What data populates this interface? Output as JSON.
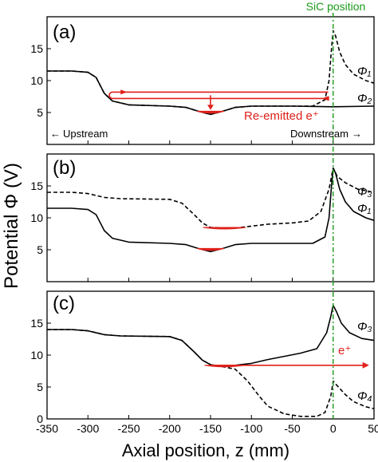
{
  "chart_data": {
    "type": "line",
    "xlabel": "Axial position, z (mm)",
    "ylabel": "Potential Φ (V)",
    "xlim": [
      -350,
      50
    ],
    "xticks": [
      "-350",
      "-300",
      "-250",
      "-200",
      "-150",
      "-100",
      "-50",
      "0",
      "50"
    ],
    "sic_label": "SiC position",
    "sic_z": 0,
    "panels": [
      {
        "label": "(a)",
        "ylim": [
          0,
          20
        ],
        "yticks": [
          "5",
          "10",
          "15"
        ],
        "upstream_label": "Upstream",
        "downstream_label": "Downstream",
        "annotation": "Re-emitted e⁺",
        "series": [
          {
            "name": "Φ₁",
            "style": "dashed",
            "points": [
              [
                -350,
                11.5
              ],
              [
                -320,
                11.5
              ],
              [
                -300,
                11.3
              ],
              [
                -290,
                10.5
              ],
              [
                -280,
                8.0
              ],
              [
                -270,
                6.8
              ],
              [
                -250,
                6.2
              ],
              [
                -200,
                6.0
              ],
              [
                -180,
                5.8
              ],
              [
                -165,
                5.2
              ],
              [
                -150,
                4.7
              ],
              [
                -135,
                5.2
              ],
              [
                -120,
                5.8
              ],
              [
                -100,
                6.0
              ],
              [
                -50,
                6.0
              ],
              [
                -25,
                6.0
              ],
              [
                -10,
                7.0
              ],
              [
                -5,
                10.0
              ],
              [
                -2,
                15.0
              ],
              [
                0,
                17.8
              ],
              [
                3,
                17.0
              ],
              [
                8,
                14.5
              ],
              [
                15,
                12.5
              ],
              [
                25,
                11.0
              ],
              [
                40,
                10.0
              ],
              [
                50,
                9.6
              ]
            ]
          },
          {
            "name": "Φ₂",
            "style": "solid",
            "points": [
              [
                -350,
                11.5
              ],
              [
                -320,
                11.5
              ],
              [
                -300,
                11.3
              ],
              [
                -290,
                10.5
              ],
              [
                -280,
                8.0
              ],
              [
                -270,
                6.8
              ],
              [
                -250,
                6.2
              ],
              [
                -200,
                6.0
              ],
              [
                -180,
                5.8
              ],
              [
                -165,
                5.2
              ],
              [
                -150,
                4.7
              ],
              [
                -135,
                5.2
              ],
              [
                -120,
                5.8
              ],
              [
                -100,
                6.0
              ],
              [
                -50,
                6.0
              ],
              [
                0,
                5.9
              ],
              [
                50,
                6.0
              ]
            ]
          }
        ]
      },
      {
        "label": "(b)",
        "ylim": [
          0,
          20
        ],
        "yticks": [
          "5",
          "10",
          "15"
        ],
        "series": [
          {
            "name": "Φ₃",
            "style": "dashed",
            "points": [
              [
                -350,
                14.0
              ],
              [
                -320,
                14.0
              ],
              [
                -300,
                13.8
              ],
              [
                -280,
                13.2
              ],
              [
                -260,
                13.0
              ],
              [
                -200,
                12.9
              ],
              [
                -185,
                12.3
              ],
              [
                -170,
                10.5
              ],
              [
                -160,
                9.2
              ],
              [
                -150,
                8.5
              ],
              [
                -120,
                8.4
              ],
              [
                -100,
                8.7
              ],
              [
                -80,
                9.0
              ],
              [
                -50,
                9.2
              ],
              [
                -30,
                9.5
              ],
              [
                -15,
                11.0
              ],
              [
                -5,
                14.5
              ],
              [
                0,
                17.8
              ],
              [
                5,
                16.5
              ],
              [
                15,
                15.5
              ],
              [
                30,
                14.5
              ],
              [
                50,
                14.0
              ]
            ]
          },
          {
            "name": "Φ₁",
            "style": "solid",
            "points": [
              [
                -350,
                11.5
              ],
              [
                -320,
                11.5
              ],
              [
                -300,
                11.3
              ],
              [
                -290,
                10.5
              ],
              [
                -280,
                8.0
              ],
              [
                -270,
                6.8
              ],
              [
                -250,
                6.2
              ],
              [
                -200,
                6.0
              ],
              [
                -180,
                5.8
              ],
              [
                -165,
                5.2
              ],
              [
                -150,
                4.7
              ],
              [
                -135,
                5.2
              ],
              [
                -120,
                5.8
              ],
              [
                -100,
                6.0
              ],
              [
                -50,
                6.0
              ],
              [
                -25,
                6.0
              ],
              [
                -10,
                7.0
              ],
              [
                -5,
                10.0
              ],
              [
                -2,
                15.0
              ],
              [
                0,
                17.8
              ],
              [
                3,
                17.0
              ],
              [
                8,
                14.5
              ],
              [
                15,
                12.5
              ],
              [
                25,
                11.0
              ],
              [
                40,
                10.0
              ],
              [
                50,
                9.6
              ]
            ]
          }
        ]
      },
      {
        "label": "(c)",
        "ylim": [
          0,
          20
        ],
        "yticks": [
          "0",
          "5",
          "10",
          "15"
        ],
        "annotation": "e⁺",
        "series": [
          {
            "name": "Φ₃",
            "style": "solid",
            "points": [
              [
                -350,
                14.0
              ],
              [
                -320,
                14.0
              ],
              [
                -300,
                13.8
              ],
              [
                -280,
                13.2
              ],
              [
                -260,
                13.0
              ],
              [
                -200,
                12.9
              ],
              [
                -185,
                12.3
              ],
              [
                -170,
                10.5
              ],
              [
                -160,
                9.2
              ],
              [
                -150,
                8.5
              ],
              [
                -140,
                8.3
              ],
              [
                -120,
                8.4
              ],
              [
                -100,
                8.7
              ],
              [
                -80,
                9.3
              ],
              [
                -60,
                9.8
              ],
              [
                -40,
                10.3
              ],
              [
                -20,
                11.0
              ],
              [
                -8,
                13.5
              ],
              [
                -3,
                16.0
              ],
              [
                0,
                17.8
              ],
              [
                4,
                16.8
              ],
              [
                10,
                15.0
              ],
              [
                20,
                13.5
              ],
              [
                35,
                12.6
              ],
              [
                50,
                12.3
              ]
            ]
          },
          {
            "name": "Φ₄",
            "style": "dashed",
            "points": [
              [
                -350,
                14.0
              ],
              [
                -320,
                14.0
              ],
              [
                -300,
                13.8
              ],
              [
                -280,
                13.2
              ],
              [
                -260,
                13.0
              ],
              [
                -200,
                12.9
              ],
              [
                -185,
                12.3
              ],
              [
                -170,
                10.5
              ],
              [
                -160,
                9.2
              ],
              [
                -150,
                8.5
              ],
              [
                -140,
                8.3
              ],
              [
                -120,
                7.8
              ],
              [
                -105,
                6.0
              ],
              [
                -90,
                3.5
              ],
              [
                -80,
                2.0
              ],
              [
                -60,
                0.8
              ],
              [
                -40,
                0.4
              ],
              [
                -20,
                0.4
              ],
              [
                -10,
                1.0
              ],
              [
                -3,
                3.5
              ],
              [
                0,
                5.9
              ],
              [
                5,
                5.2
              ],
              [
                15,
                3.8
              ],
              [
                25,
                2.7
              ],
              [
                40,
                1.9
              ],
              [
                50,
                1.6
              ]
            ]
          }
        ]
      }
    ]
  }
}
